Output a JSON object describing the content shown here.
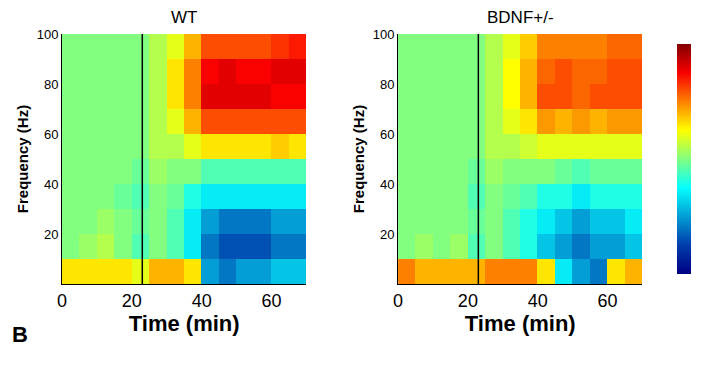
{
  "panel_label": "B",
  "chart_data": [
    {
      "type": "heatmap",
      "title": "WT",
      "x_label": "Time (min)",
      "y_label": "Frequency (Hz)",
      "color": "Jet",
      "x": [
        2.5,
        7.5,
        12.5,
        17.5,
        22.5,
        27.5,
        32.5,
        37.5,
        42.5,
        47.5,
        52.5,
        57.5,
        62.5,
        67.5
      ],
      "y": [
        5,
        15,
        25,
        35,
        45,
        55,
        65,
        75,
        85,
        95
      ],
      "cells": [
        [
          0.3,
          0.3,
          0.3,
          0.3,
          0.2,
          0.4,
          0.4,
          0.3,
          -0.5,
          -0.6,
          -0.5,
          -0.5,
          -0.4,
          -0.4
        ],
        [
          0.0,
          0.05,
          0.1,
          0.0,
          -0.1,
          0.0,
          -0.1,
          -0.3,
          -0.6,
          -0.7,
          -0.7,
          -0.7,
          -0.6,
          -0.6
        ],
        [
          0.0,
          0.0,
          0.05,
          0.0,
          -0.05,
          0.0,
          -0.1,
          -0.3,
          -0.5,
          -0.6,
          -0.6,
          -0.6,
          -0.5,
          -0.5
        ],
        [
          0.0,
          0.0,
          0.0,
          -0.05,
          -0.1,
          0.0,
          -0.05,
          -0.2,
          -0.3,
          -0.3,
          -0.3,
          -0.3,
          -0.3,
          -0.3
        ],
        [
          0.0,
          0.0,
          0.0,
          0.0,
          -0.05,
          0.05,
          0.0,
          0.0,
          -0.1,
          -0.1,
          -0.1,
          -0.1,
          -0.1,
          -0.1
        ],
        [
          0.0,
          0.0,
          0.0,
          0.0,
          0.0,
          0.1,
          0.1,
          0.2,
          0.3,
          0.3,
          0.3,
          0.3,
          0.35,
          0.3
        ],
        [
          0.0,
          0.0,
          0.0,
          0.0,
          0.0,
          0.1,
          0.2,
          0.4,
          0.6,
          0.6,
          0.6,
          0.6,
          0.6,
          0.6
        ],
        [
          0.0,
          0.0,
          0.0,
          0.0,
          0.0,
          0.1,
          0.3,
          0.5,
          0.8,
          0.8,
          0.8,
          0.8,
          0.75,
          0.75
        ],
        [
          0.0,
          0.0,
          0.0,
          0.0,
          0.0,
          0.1,
          0.3,
          0.5,
          0.75,
          0.8,
          0.75,
          0.75,
          0.8,
          0.8
        ],
        [
          0.0,
          0.0,
          0.0,
          0.0,
          0.0,
          0.1,
          0.2,
          0.4,
          0.6,
          0.6,
          0.6,
          0.6,
          0.65,
          0.7
        ]
      ],
      "zlim": [
        -1,
        1
      ],
      "event_x": 23,
      "xlim": [
        0,
        70
      ],
      "xticks": [
        0,
        20,
        40,
        60
      ],
      "ylim": [
        0,
        100
      ],
      "yticks": [
        20,
        40,
        60,
        80,
        100
      ]
    },
    {
      "type": "heatmap",
      "title": "BDNF+/-",
      "x_label": "Time (min)",
      "y_label": "Frequency (Hz)",
      "color": "Jet",
      "x": [
        2.5,
        7.5,
        12.5,
        17.5,
        22.5,
        27.5,
        32.5,
        37.5,
        42.5,
        47.5,
        52.5,
        57.5,
        62.5,
        67.5
      ],
      "y": [
        5,
        15,
        25,
        35,
        45,
        55,
        65,
        75,
        85,
        95
      ],
      "cells": [
        [
          0.5,
          0.4,
          0.4,
          0.4,
          0.4,
          0.5,
          0.5,
          0.5,
          0.3,
          -0.3,
          -0.5,
          -0.6,
          0.3,
          0.4
        ],
        [
          0.0,
          0.05,
          0.0,
          0.05,
          -0.1,
          0.0,
          -0.1,
          -0.2,
          -0.4,
          -0.5,
          -0.6,
          -0.5,
          -0.5,
          -0.4
        ],
        [
          0.0,
          0.0,
          0.0,
          0.0,
          -0.05,
          0.0,
          -0.1,
          -0.2,
          -0.3,
          -0.4,
          -0.5,
          -0.4,
          -0.4,
          -0.3
        ],
        [
          0.0,
          0.0,
          0.0,
          0.0,
          -0.1,
          0.0,
          -0.05,
          -0.1,
          -0.2,
          -0.2,
          -0.3,
          -0.2,
          -0.2,
          -0.2
        ],
        [
          0.0,
          0.0,
          0.0,
          0.0,
          -0.05,
          0.05,
          0.0,
          0.0,
          0.0,
          -0.05,
          -0.1,
          -0.05,
          -0.05,
          -0.05
        ],
        [
          0.0,
          0.0,
          0.0,
          0.0,
          0.0,
          0.1,
          0.1,
          0.15,
          0.2,
          0.2,
          0.2,
          0.2,
          0.2,
          0.2
        ],
        [
          0.0,
          0.0,
          0.0,
          0.0,
          0.0,
          0.1,
          0.2,
          0.3,
          0.45,
          0.4,
          0.45,
          0.4,
          0.45,
          0.45
        ],
        [
          0.0,
          0.0,
          0.0,
          0.0,
          0.0,
          0.1,
          0.25,
          0.4,
          0.6,
          0.6,
          0.55,
          0.6,
          0.6,
          0.6
        ],
        [
          0.0,
          0.0,
          0.0,
          0.0,
          0.0,
          0.1,
          0.25,
          0.4,
          0.55,
          0.6,
          0.55,
          0.55,
          0.6,
          0.6
        ],
        [
          0.0,
          0.0,
          0.0,
          0.0,
          0.0,
          0.1,
          0.2,
          0.35,
          0.5,
          0.5,
          0.5,
          0.5,
          0.55,
          0.55
        ]
      ],
      "zlim": [
        -1,
        1
      ],
      "event_x": 23,
      "xlim": [
        0,
        70
      ],
      "xticks": [
        0,
        20,
        40,
        60
      ],
      "ylim": [
        0,
        100
      ],
      "yticks": [
        20,
        40,
        60,
        80,
        100
      ]
    }
  ]
}
